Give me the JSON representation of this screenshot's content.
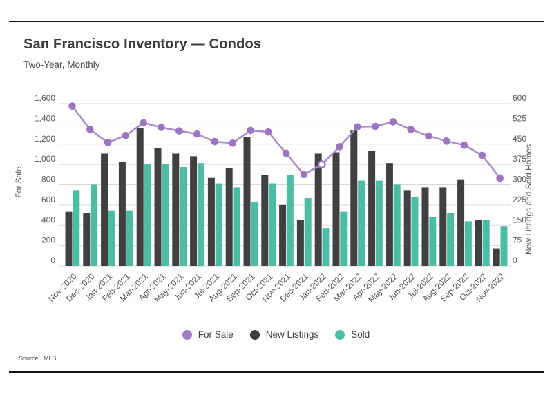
{
  "page": {
    "title": "San Francisco Inventory — Condos",
    "subtitle": "Two-Year, Monthly",
    "source": "Source:  MLS"
  },
  "colors": {
    "for_sale_line": "#a58bcb",
    "for_sale_dot": "#9c74c0",
    "new_listings": "#404040",
    "sold": "#4bbda4",
    "grid": "#d8d8d8",
    "axis_text": "#595959",
    "rule": "#151515"
  },
  "legend": {
    "items": [
      {
        "label": "For Sale",
        "color": "#a37cc4"
      },
      {
        "label": "New Listings",
        "color": "#3d3d3d"
      },
      {
        "label": "Sold",
        "color": "#4bbda4"
      }
    ]
  },
  "chart_data": {
    "type": "bar",
    "subtype": "grouped-bars-with-line-overlay",
    "title": "San Francisco Inventory — Condos",
    "subtitle": "Two-Year, Monthly",
    "grid": true,
    "legend_position": "bottom",
    "categories": [
      "Nov-2020",
      "Dec-2020",
      "Jan-2021",
      "Feb-2021",
      "Mar-2021",
      "Apr-2021",
      "May-2021",
      "Jun-2021",
      "Jul-2021",
      "Aug-2021",
      "Sep-2021",
      "Oct-2021",
      "Nov-2021",
      "Dec-2021",
      "Jan-2022",
      "Feb-2022",
      "Mar-2022",
      "Apr-2022",
      "May-2022",
      "Jun-2022",
      "Jul-2022",
      "Aug-2022",
      "Sep-2022",
      "Oct-2022",
      "Nov-2022"
    ],
    "series": [
      {
        "name": "For Sale",
        "kind": "line",
        "axis": "left",
        "color": "#9c74c0",
        "hollow_point_category": "Jan-2022",
        "hollow_point_index": 14,
        "values": [
          1575,
          1345,
          1215,
          1285,
          1410,
          1365,
          1330,
          1300,
          1225,
          1210,
          1335,
          1320,
          1110,
          900,
          1000,
          1175,
          1370,
          1375,
          1420,
          1345,
          1280,
          1230,
          1190,
          1090,
          865
        ]
      },
      {
        "name": "New Listings",
        "kind": "bar",
        "axis": "right",
        "color": "#404040",
        "values": [
          200,
          195,
          415,
          385,
          510,
          435,
          415,
          405,
          325,
          360,
          475,
          335,
          225,
          170,
          415,
          420,
          500,
          425,
          380,
          280,
          290,
          290,
          320,
          170,
          65
        ]
      },
      {
        "name": "Sold",
        "kind": "bar",
        "axis": "right",
        "color": "#4bbda4",
        "values": [
          280,
          300,
          205,
          205,
          375,
          375,
          365,
          380,
          305,
          290,
          235,
          305,
          335,
          250,
          140,
          200,
          315,
          315,
          300,
          255,
          180,
          195,
          165,
          170,
          145
        ]
      }
    ],
    "left_axis": {
      "label": "For Sale",
      "min": 0,
      "max": 1600,
      "tick_step": 200,
      "ticks": [
        "0",
        "200",
        "400",
        "600",
        "800",
        "1,000",
        "1,200",
        "1,400",
        "1,600"
      ]
    },
    "right_axis": {
      "label": "New Listings and Sold Homes",
      "min": 0,
      "max": 600,
      "tick_step": 75,
      "ticks": [
        "0",
        "75",
        "150",
        "225",
        "300",
        "375",
        "450",
        "525",
        "600"
      ]
    }
  }
}
